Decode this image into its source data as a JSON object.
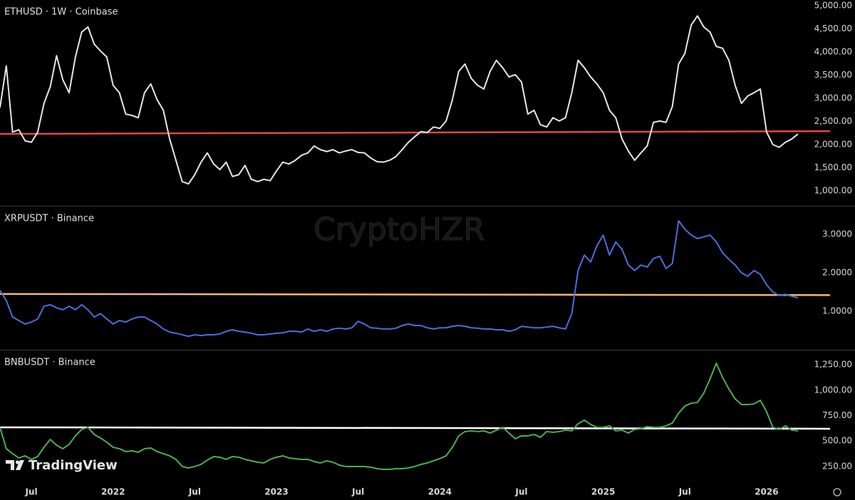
{
  "chart_data": [
    {
      "type": "line",
      "title": "ETHUSD · 1W · Coinbase",
      "series": [
        {
          "color": "#e6e6e6",
          "values": [
            2800,
            3700,
            2270,
            2320,
            2080,
            2050,
            2270,
            2890,
            3250,
            3920,
            3400,
            3120,
            3890,
            4430,
            4540,
            4170,
            4020,
            3890,
            3280,
            3120,
            2660,
            2630,
            2580,
            3120,
            3310,
            2970,
            2740,
            2120,
            1660,
            1200,
            1150,
            1350,
            1620,
            1820,
            1580,
            1460,
            1620,
            1310,
            1350,
            1550,
            1250,
            1200,
            1250,
            1220,
            1430,
            1620,
            1580,
            1660,
            1770,
            1820,
            1970,
            1890,
            1850,
            1890,
            1820,
            1860,
            1890,
            1830,
            1820,
            1710,
            1630,
            1620,
            1660,
            1740,
            1890,
            2050,
            2170,
            2280,
            2260,
            2380,
            2350,
            2510,
            2970,
            3580,
            3740,
            3430,
            3280,
            3200,
            3580,
            3820,
            3660,
            3460,
            3510,
            3350,
            2660,
            2740,
            2430,
            2380,
            2580,
            2510,
            2580,
            3120,
            3820,
            3660,
            3460,
            3310,
            3120,
            2740,
            2580,
            2120,
            1860,
            1660,
            1820,
            1970,
            2480,
            2510,
            2480,
            2820,
            3740,
            3970,
            4580,
            4780,
            4540,
            4430,
            4120,
            4080,
            3820,
            3280,
            2890,
            3050,
            3120,
            3200,
            2270,
            2000,
            1940,
            2050,
            2120,
            2230
          ]
        }
      ],
      "trend_line": {
        "start": 2230,
        "end": 2290,
        "color": "#e04848"
      },
      "ylim": [
        692,
        5123
      ],
      "yticks": [
        {
          "value": 1000,
          "label": "1,000.00"
        },
        {
          "value": 1500,
          "label": "1,500.00"
        },
        {
          "value": 2000,
          "label": "2,000.00"
        },
        {
          "value": 2500,
          "label": "2,500.00"
        },
        {
          "value": 3000,
          "label": "3,000.00"
        },
        {
          "value": 3500,
          "label": "3,500.00"
        },
        {
          "value": 4000,
          "label": "4,000.00"
        },
        {
          "value": 4500,
          "label": "4,500.00"
        },
        {
          "value": 5000,
          "label": "5,000.00"
        }
      ]
    },
    {
      "type": "line",
      "title": "XRPUSDT · Binance",
      "series": [
        {
          "color": "#4a6ee0",
          "values": [
            1.54,
            1.28,
            0.85,
            0.76,
            0.67,
            0.72,
            0.8,
            1.13,
            1.17,
            1.09,
            1.04,
            1.13,
            1.04,
            1.17,
            1.04,
            0.85,
            0.94,
            0.8,
            0.67,
            0.76,
            0.72,
            0.8,
            0.85,
            0.85,
            0.76,
            0.67,
            0.54,
            0.46,
            0.43,
            0.39,
            0.35,
            0.39,
            0.37,
            0.39,
            0.39,
            0.41,
            0.48,
            0.52,
            0.48,
            0.46,
            0.43,
            0.39,
            0.39,
            0.41,
            0.43,
            0.44,
            0.48,
            0.48,
            0.46,
            0.54,
            0.48,
            0.52,
            0.48,
            0.54,
            0.56,
            0.54,
            0.57,
            0.74,
            0.67,
            0.57,
            0.56,
            0.54,
            0.54,
            0.56,
            0.63,
            0.67,
            0.63,
            0.63,
            0.57,
            0.54,
            0.57,
            0.57,
            0.61,
            0.63,
            0.61,
            0.57,
            0.56,
            0.54,
            0.54,
            0.52,
            0.52,
            0.48,
            0.52,
            0.61,
            0.59,
            0.57,
            0.57,
            0.59,
            0.61,
            0.57,
            0.54,
            0.94,
            2.06,
            2.46,
            2.28,
            2.7,
            2.98,
            2.46,
            2.8,
            2.61,
            2.2,
            2.06,
            2.2,
            2.15,
            2.37,
            2.43,
            2.11,
            2.24,
            3.35,
            3.13,
            2.98,
            2.89,
            2.93,
            2.98,
            2.8,
            2.52,
            2.35,
            2.2,
            2.0,
            1.91,
            2.06,
            1.96,
            1.69,
            1.5,
            1.41,
            1.44,
            1.39,
            1.35
          ]
        }
      ],
      "trend_line": {
        "start": 1.45,
        "end": 1.42,
        "color": "#f0b868"
      },
      "ylim": [
        0.02,
        3.72
      ],
      "yticks": [
        {
          "value": 1,
          "label": "1.0000"
        },
        {
          "value": 2,
          "label": "2.0000"
        },
        {
          "value": 3,
          "label": "3.0000"
        }
      ]
    },
    {
      "type": "line",
      "title": "BNBUSDT · Binance",
      "series": [
        {
          "color": "#4caf50",
          "values": [
            635,
            425,
            376,
            334,
            355,
            320,
            348,
            439,
            516,
            460,
            425,
            467,
            551,
            614,
            635,
            565,
            530,
            488,
            439,
            425,
            397,
            404,
            390,
            425,
            432,
            397,
            376,
            355,
            320,
            250,
            236,
            250,
            271,
            313,
            348,
            341,
            320,
            348,
            341,
            320,
            306,
            292,
            285,
            320,
            341,
            355,
            334,
            327,
            320,
            320,
            299,
            285,
            306,
            292,
            264,
            250,
            250,
            250,
            250,
            243,
            229,
            222,
            222,
            229,
            229,
            236,
            250,
            271,
            285,
            306,
            327,
            355,
            439,
            551,
            593,
            600,
            593,
            600,
            579,
            607,
            635,
            579,
            523,
            551,
            551,
            565,
            537,
            593,
            586,
            593,
            607,
            600,
            670,
            705,
            663,
            635,
            635,
            649,
            600,
            607,
            579,
            614,
            621,
            642,
            635,
            635,
            649,
            677,
            774,
            844,
            872,
            879,
            970,
            1110,
            1264,
            1124,
            1012,
            914,
            858,
            858,
            865,
            900,
            788,
            635,
            614,
            649,
            607,
            600
          ]
        }
      ],
      "trend_line": {
        "start": 635,
        "end": 621,
        "color": "#ffffff"
      },
      "ylim": [
        75,
        1390
      ],
      "yticks": [
        {
          "value": 250,
          "label": "250.00"
        },
        {
          "value": 500,
          "label": "500.00"
        },
        {
          "value": 750,
          "label": "750.00"
        },
        {
          "value": 1000,
          "label": "1,000.00"
        },
        {
          "value": 1250,
          "label": "1,250.00"
        }
      ],
      "categories": [
        null,
        null,
        null,
        null,
        null,
        "Jul",
        null,
        null,
        null,
        null,
        null,
        null,
        null,
        null,
        null,
        null,
        null,
        null,
        "2022",
        null,
        null,
        null,
        null,
        null,
        null,
        null,
        null,
        null,
        null,
        null,
        null,
        "Jul",
        null,
        null,
        null,
        null,
        null,
        null,
        null,
        null,
        null,
        null,
        null,
        null,
        "2023",
        null,
        null,
        null,
        null,
        null,
        null,
        null,
        null,
        null,
        null,
        null,
        null,
        "Jul",
        null,
        null,
        null,
        null,
        null,
        null,
        null,
        null,
        null,
        null,
        null,
        null,
        "2024",
        null,
        null,
        null,
        null,
        null,
        null,
        null,
        null,
        null,
        null,
        null,
        null,
        "Jul",
        null,
        null,
        null,
        null,
        null,
        null,
        null,
        null,
        null,
        null,
        null,
        null,
        "2025",
        null,
        null,
        null,
        null,
        null,
        null,
        null,
        null,
        null,
        null,
        null,
        null,
        "Jul",
        null,
        null,
        null,
        null,
        null,
        null,
        null,
        null,
        null,
        null,
        null,
        null,
        "2026",
        null,
        null,
        null,
        null,
        null
      ]
    }
  ],
  "watermark": "CryptoHZR",
  "logo": "TradingView"
}
